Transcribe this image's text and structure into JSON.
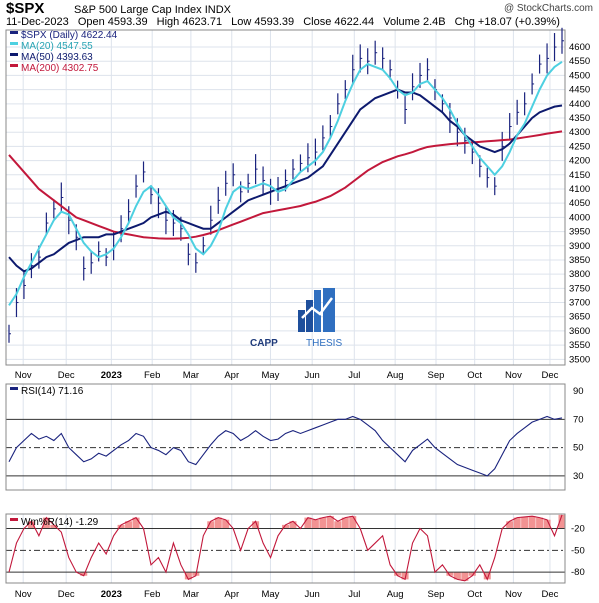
{
  "header": {
    "symbol": "$SPX",
    "name": "S&P 500 Large Cap Index",
    "exchange": "INDX",
    "watermark": "@ StockCharts.com",
    "date": "11-Dec-2023",
    "open": "Open 4593.39",
    "high": "High 4623.71",
    "low": "Low 4593.39",
    "close": "Close 4622.44",
    "volume": "Volume 2.4B",
    "chg": "Chg +18.07 (+0.39%)"
  },
  "logo": {
    "text_a": "CAPP",
    "text_b": "THESIS"
  },
  "colors": {
    "price": "#1a237e",
    "ma20": "#4dd0e1",
    "ma50": "#0d1a6e",
    "ma200": "#c2183b",
    "rsi": "#1a237e",
    "wr": "#c2183b",
    "wrfill": "#f08080",
    "grid": "#dde3ec"
  },
  "chart_data": [
    {
      "type": "line",
      "panel": "price",
      "legend": [
        {
          "label": "$SPX (Daily) 4622.44",
          "color": "#1a237e"
        },
        {
          "label": "MA(20) 4547.55",
          "color": "#4dd0e1"
        },
        {
          "label": "MA(50) 4393.63",
          "color": "#0d1a6e"
        },
        {
          "label": "MA(200) 4302.75",
          "color": "#c2183b"
        }
      ],
      "legend_position": "top-left",
      "ylim": [
        3480,
        4660
      ],
      "y_ticks": [
        3500,
        3550,
        3600,
        3650,
        3700,
        3750,
        3800,
        3850,
        3900,
        3950,
        4000,
        4050,
        4100,
        4150,
        4200,
        4250,
        4300,
        4350,
        4400,
        4450,
        4500,
        4550,
        4600
      ],
      "x_ticks": [
        "Nov",
        "Dec",
        "2023",
        "Feb",
        "Mar",
        "Apr",
        "May",
        "Jun",
        "Jul",
        "Aug",
        "Sep",
        "Oct",
        "Nov",
        "Dec"
      ],
      "x_tick_pos": [
        0.04,
        0.14,
        0.245,
        0.34,
        0.43,
        0.525,
        0.615,
        0.712,
        0.81,
        0.905,
        1.0,
        1.09,
        1.18,
        1.265
      ],
      "x_range": [
        0,
        1.3
      ],
      "grid": true,
      "series": [
        {
          "kind": "price",
          "values": [
            3590,
            3700,
            3760,
            3830,
            3860,
            3980,
            4030,
            4070,
            3990,
            3930,
            3820,
            3840,
            3880,
            3860,
            3900,
            3960,
            4020,
            4110,
            4160,
            4080,
            4050,
            3990,
            3980,
            3960,
            3870,
            3840,
            3900,
            3990,
            4060,
            4120,
            4150,
            4090,
            4120,
            4170,
            4130,
            4090,
            4100,
            4130,
            4170,
            4190,
            4210,
            4230,
            4280,
            4320,
            4400,
            4450,
            4520,
            4560,
            4550,
            4580,
            4560,
            4520,
            4450,
            4380,
            4460,
            4500,
            4520,
            4450,
            4400,
            4350,
            4300,
            4270,
            4230,
            4180,
            4140,
            4110,
            4250,
            4320,
            4370,
            4400,
            4470,
            4540,
            4560,
            4600,
            4622
          ]
        },
        {
          "kind": "ma20",
          "values": [
            3690,
            3730,
            3790,
            3840,
            3890,
            3940,
            3990,
            4020,
            4010,
            3960,
            3910,
            3880,
            3860,
            3870,
            3890,
            3930,
            3980,
            4040,
            4090,
            4110,
            4080,
            4040,
            4000,
            3980,
            3940,
            3890,
            3870,
            3900,
            3950,
            4030,
            4090,
            4110,
            4100,
            4110,
            4120,
            4110,
            4090,
            4100,
            4130,
            4160,
            4180,
            4200,
            4230,
            4280,
            4340,
            4410,
            4470,
            4520,
            4540,
            4530,
            4520,
            4490,
            4450,
            4430,
            4440,
            4470,
            4480,
            4450,
            4420,
            4380,
            4330,
            4290,
            4250,
            4210,
            4180,
            4150,
            4180,
            4230,
            4290,
            4330,
            4390,
            4450,
            4500,
            4530,
            4548
          ]
        },
        {
          "kind": "ma50",
          "values": [
            3860,
            3830,
            3810,
            3820,
            3840,
            3860,
            3870,
            3890,
            3910,
            3920,
            3930,
            3930,
            3930,
            3940,
            3940,
            3950,
            3960,
            3970,
            3980,
            4000,
            4010,
            4020,
            4010,
            3990,
            3980,
            3970,
            3960,
            3960,
            3980,
            4000,
            4020,
            4040,
            4060,
            4070,
            4080,
            4090,
            4100,
            4110,
            4120,
            4130,
            4140,
            4160,
            4180,
            4220,
            4260,
            4300,
            4340,
            4380,
            4400,
            4420,
            4430,
            4440,
            4450,
            4440,
            4440,
            4430,
            4410,
            4390,
            4370,
            4340,
            4320,
            4290,
            4270,
            4250,
            4240,
            4230,
            4240,
            4260,
            4290,
            4320,
            4350,
            4370,
            4380,
            4390,
            4394
          ]
        },
        {
          "kind": "ma200",
          "values": [
            4220,
            4190,
            4160,
            4130,
            4100,
            4080,
            4060,
            4040,
            4020,
            4000,
            3990,
            3980,
            3970,
            3960,
            3950,
            3945,
            3940,
            3935,
            3930,
            3928,
            3926,
            3925,
            3925,
            3926,
            3928,
            3932,
            3938,
            3945,
            3955,
            3965,
            3975,
            3985,
            3995,
            4005,
            4015,
            4020,
            4025,
            4030,
            4035,
            4040,
            4048,
            4055,
            4065,
            4075,
            4090,
            4105,
            4125,
            4145,
            4165,
            4180,
            4195,
            4205,
            4215,
            4222,
            4230,
            4240,
            4248,
            4252,
            4255,
            4258,
            4260,
            4262,
            4264,
            4266,
            4268,
            4270,
            4272,
            4274,
            4278,
            4282,
            4286,
            4290,
            4295,
            4299,
            4303
          ]
        }
      ]
    },
    {
      "type": "line",
      "panel": "rsi",
      "legend": [
        {
          "label": "RSI(14) 71.16",
          "color": "#1a237e"
        }
      ],
      "ylim": [
        20,
        95
      ],
      "y_ticks": [
        30,
        50,
        70,
        90
      ],
      "y_tick_labels": [
        "30",
        "50",
        "70",
        "90"
      ],
      "levels": [
        30,
        50,
        70
      ],
      "series": [
        {
          "name": "RSI(14)",
          "values": [
            40,
            50,
            55,
            60,
            56,
            58,
            55,
            60,
            50,
            45,
            40,
            42,
            46,
            44,
            48,
            52,
            55,
            60,
            58,
            50,
            48,
            45,
            50,
            48,
            40,
            38,
            45,
            52,
            58,
            62,
            60,
            55,
            58,
            62,
            58,
            55,
            56,
            60,
            62,
            60,
            62,
            64,
            66,
            68,
            70,
            70,
            72,
            70,
            66,
            62,
            55,
            50,
            45,
            40,
            48,
            52,
            56,
            50,
            46,
            42,
            38,
            36,
            34,
            32,
            30,
            35,
            45,
            55,
            60,
            64,
            68,
            70,
            72,
            70,
            71
          ]
        }
      ]
    },
    {
      "type": "line",
      "panel": "williams",
      "legend": [
        {
          "label": "Wm%R(14) -1.29",
          "color": "#c2183b"
        }
      ],
      "ylim": [
        -95,
        0
      ],
      "y_ticks": [
        -20,
        -50,
        -80
      ],
      "y_tick_labels": [
        "-20",
        "-50",
        "-80"
      ],
      "levels": [
        -20,
        -50,
        -80
      ],
      "series": [
        {
          "name": "Wm%R(14)",
          "values": [
            -80,
            -40,
            -20,
            -10,
            -30,
            -5,
            -15,
            -25,
            -60,
            -80,
            -85,
            -60,
            -40,
            -55,
            -30,
            -15,
            -10,
            -5,
            -20,
            -70,
            -60,
            -80,
            -40,
            -70,
            -90,
            -85,
            -30,
            -10,
            -5,
            -8,
            -20,
            -50,
            -20,
            -10,
            -40,
            -60,
            -30,
            -15,
            -10,
            -20,
            -5,
            -8,
            -5,
            -3,
            -10,
            -5,
            -3,
            -20,
            -50,
            -40,
            -30,
            -70,
            -85,
            -90,
            -40,
            -20,
            -30,
            -80,
            -70,
            -85,
            -90,
            -92,
            -85,
            -70,
            -90,
            -60,
            -20,
            -10,
            -5,
            -4,
            -3,
            -5,
            -8,
            -30,
            -1.29
          ]
        }
      ]
    }
  ]
}
